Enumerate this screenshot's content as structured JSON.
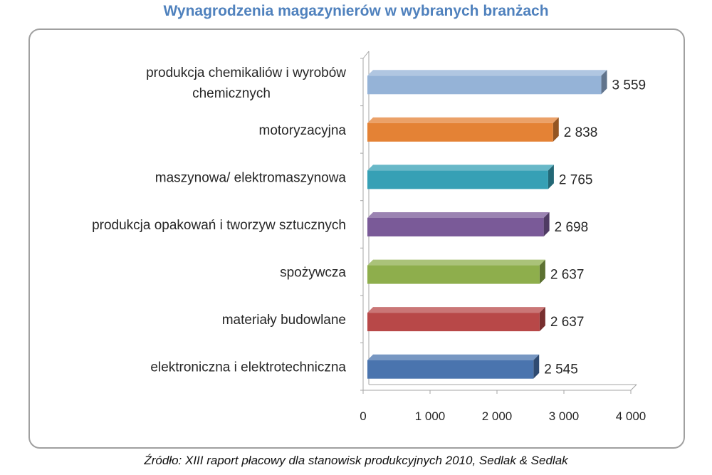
{
  "title": "Wynagrodzenia magazynierów w wybranych branżach",
  "source": "Źródło: XIII raport płacowy dla stanowisk produkcyjnych 2010, Sedlak & Sedlak",
  "chart_data": {
    "type": "bar",
    "orientation": "horizontal",
    "style": "3d",
    "categories": [
      [
        "produkcja chemikaliów i wyrobów",
        "chemicznych"
      ],
      [
        "motoryzacyjna"
      ],
      [
        "maszynowa/ elektromaszynowa"
      ],
      [
        "produkcja opakowań i tworzyw sztucznych"
      ],
      [
        "spożywcza"
      ],
      [
        "materiały budowlane"
      ],
      [
        "elektroniczna i elektrotechniczna"
      ]
    ],
    "values": [
      3559,
      2838,
      2765,
      2698,
      2637,
      2637,
      2545
    ],
    "value_labels": [
      "3 559",
      "2 838",
      "2 765",
      "2 698",
      "2 637",
      "2 637",
      "2 545"
    ],
    "colors": [
      "#95b3d7",
      "#e48235",
      "#36a0b5",
      "#7a5a98",
      "#8eae4c",
      "#b84848",
      "#4a74ae"
    ],
    "xlim": [
      0,
      4000
    ],
    "xticks": [
      0,
      1000,
      2000,
      3000,
      4000
    ],
    "xtick_labels": [
      "0",
      "1 000",
      "2 000",
      "3 000",
      "4 000"
    ],
    "grid": false,
    "legend": "none"
  }
}
